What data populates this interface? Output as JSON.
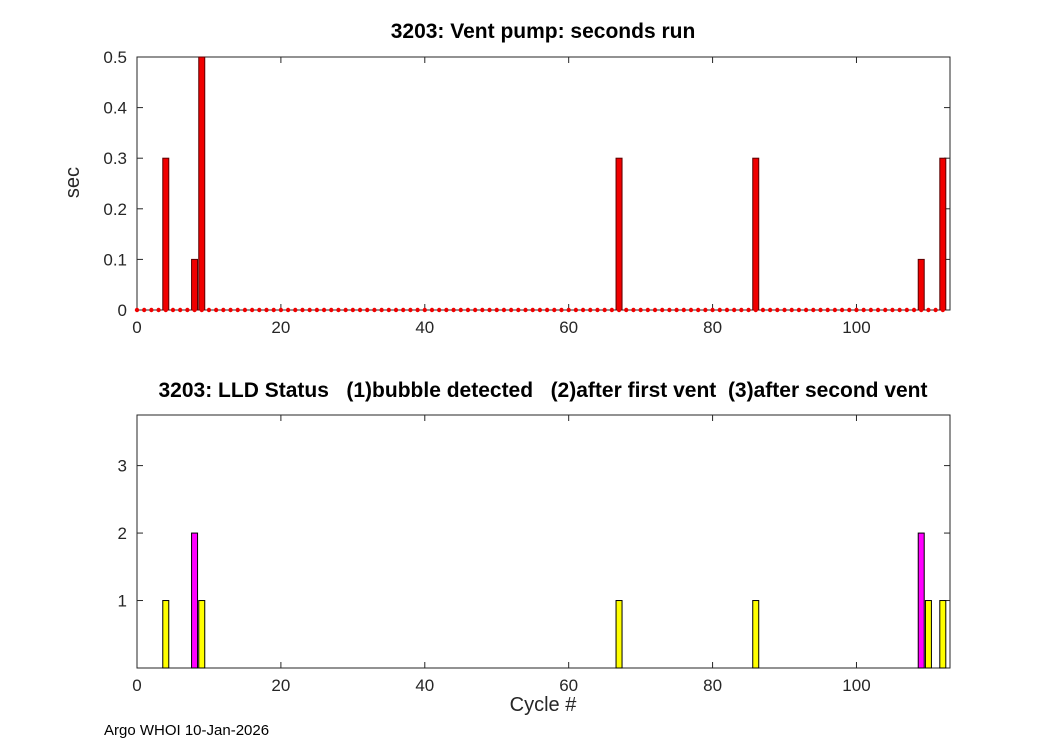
{
  "figure": {
    "bg": "#ffffff",
    "footer": "Argo WHOI 10-Jan-2026",
    "axis_color": "#262626"
  },
  "chart_data": [
    {
      "type": "bar",
      "title": "3203: Vent pump: seconds run",
      "xlabel": "",
      "ylabel": "sec",
      "xlim": [
        0,
        113
      ],
      "ylim": [
        0,
        0.5
      ],
      "xticks": [
        0,
        20,
        40,
        60,
        80,
        100
      ],
      "yticks": [
        0,
        0.1,
        0.2,
        0.3,
        0.4,
        0.5
      ],
      "grid": false,
      "legend": "none",
      "bar_color": "#f00000",
      "bar_edge": "#5a0000",
      "marker_color": "#f00000",
      "bars": [
        {
          "x": 4,
          "y": 0.3
        },
        {
          "x": 8,
          "y": 0.1
        },
        {
          "x": 9,
          "y": 0.5
        },
        {
          "x": 67,
          "y": 0.3
        },
        {
          "x": 86,
          "y": 0.3
        },
        {
          "x": 109,
          "y": 0.1
        },
        {
          "x": 112,
          "y": 0.3
        }
      ],
      "zero_markers": {
        "from": 0,
        "to": 112,
        "value": 0
      }
    },
    {
      "type": "bar",
      "title": "3203: LLD Status   (1)bubble detected   (2)after first vent  (3)after second vent",
      "xlabel": "Cycle #",
      "ylabel": "",
      "xlim": [
        0,
        113
      ],
      "ylim": [
        0,
        3.75
      ],
      "xticks": [
        0,
        20,
        40,
        60,
        80,
        100
      ],
      "yticks": [
        1,
        2,
        3
      ],
      "grid": false,
      "legend": "none",
      "bar_edge": "#000000",
      "colors": {
        "bubble_detected": "#ffff00",
        "after_first_vent": "#ff00ff"
      },
      "bars": [
        {
          "x": 4,
          "y": 1,
          "color": "#ffff00"
        },
        {
          "x": 8,
          "y": 2,
          "color": "#ff00ff"
        },
        {
          "x": 9,
          "y": 1,
          "color": "#ffff00"
        },
        {
          "x": 67,
          "y": 1,
          "color": "#ffff00"
        },
        {
          "x": 86,
          "y": 1,
          "color": "#ffff00"
        },
        {
          "x": 109,
          "y": 2,
          "color": "#ff00ff"
        },
        {
          "x": 110,
          "y": 1,
          "color": "#ffff00"
        },
        {
          "x": 112,
          "y": 1,
          "color": "#ffff00"
        }
      ]
    }
  ]
}
